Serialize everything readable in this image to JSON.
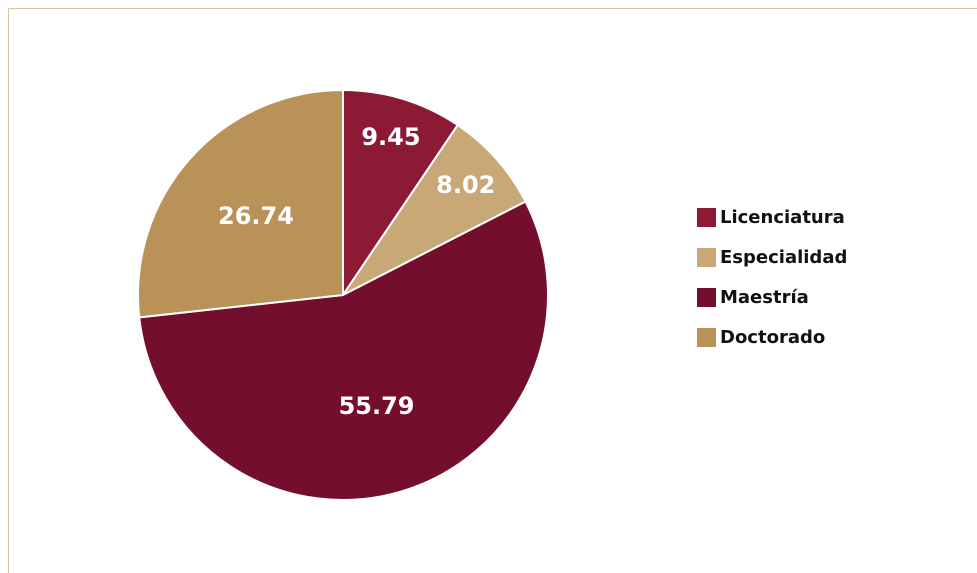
{
  "chart_data": {
    "type": "pie",
    "categories": [
      "Licenciatura",
      "Especialidad",
      "Maestría",
      "Doctorado"
    ],
    "values": [
      9.45,
      8.02,
      55.79,
      26.74
    ],
    "colors": [
      "#8c1a35",
      "#c9a877",
      "#730e2d",
      "#b89257"
    ],
    "legend": "right"
  }
}
